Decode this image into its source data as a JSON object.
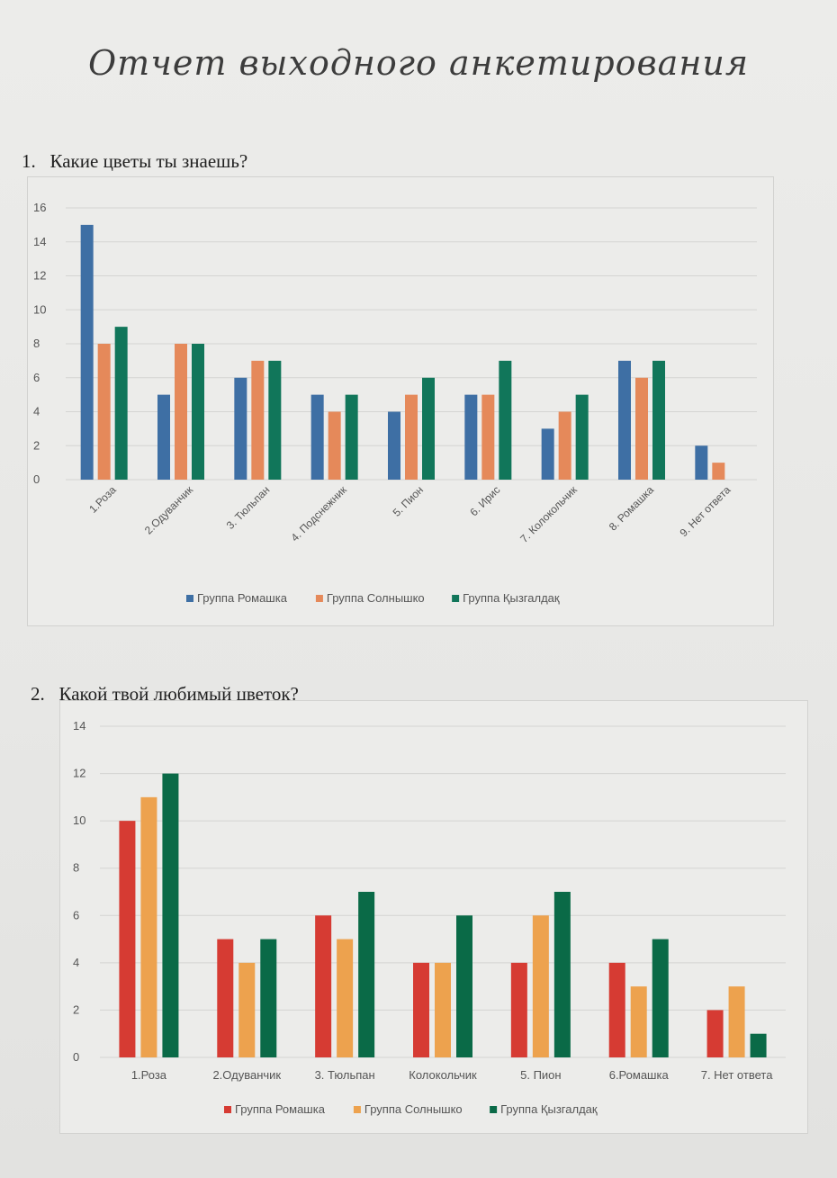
{
  "document": {
    "title": "Отчет выходного анкетирования"
  },
  "questions": [
    {
      "number": "1.",
      "text": "Какие цветы ты знаешь?"
    },
    {
      "number": "2.",
      "text": "Какой твой любимый цветок?"
    }
  ],
  "chart_data": [
    {
      "type": "bar",
      "title": "",
      "xlabel": "",
      "ylabel": "",
      "ylim": [
        0,
        16
      ],
      "yticks": [
        0,
        2,
        4,
        6,
        8,
        10,
        12,
        14,
        16
      ],
      "grid": true,
      "legend_position": "bottom",
      "categories": [
        "1.Роза",
        "2.Одуванчик",
        "3. Тюльпан",
        "4. Подснежник",
        "5. Пион",
        "6. Ирис",
        "7. Колокольчик",
        "8. Ромашка",
        "9. Нет ответа"
      ],
      "series": [
        {
          "name": "Группа Ромашка",
          "color": "#3e6fa4",
          "values": [
            15,
            5,
            6,
            5,
            4,
            5,
            3,
            7,
            2
          ]
        },
        {
          "name": "Группа Солнышко",
          "color": "#e5895a",
          "values": [
            8,
            8,
            7,
            4,
            5,
            5,
            4,
            6,
            1
          ]
        },
        {
          "name": "Группа Қызгалдақ",
          "color": "#11765a",
          "values": [
            9,
            8,
            7,
            5,
            6,
            7,
            5,
            7,
            null
          ]
        }
      ]
    },
    {
      "type": "bar",
      "title": "",
      "xlabel": "",
      "ylabel": "",
      "ylim": [
        0,
        14
      ],
      "yticks": [
        0,
        2,
        4,
        6,
        8,
        10,
        12,
        14
      ],
      "grid": true,
      "legend_position": "bottom",
      "categories": [
        "1.Роза",
        "2.Одуванчик",
        "3. Тюльпан",
        "Колокольчик",
        "5. Пион",
        "6.Ромашка",
        "7. Нет ответа"
      ],
      "series": [
        {
          "name": "Группа Ромашка",
          "color": "#d63b33",
          "values": [
            10,
            5,
            6,
            4,
            4,
            4,
            2
          ]
        },
        {
          "name": "Группа Солнышко",
          "color": "#eda24e",
          "values": [
            11,
            4,
            5,
            4,
            6,
            3,
            3
          ]
        },
        {
          "name": "Группа Қызгалдақ",
          "color": "#0a6a47",
          "values": [
            12,
            5,
            7,
            6,
            7,
            5,
            1
          ]
        }
      ]
    }
  ]
}
